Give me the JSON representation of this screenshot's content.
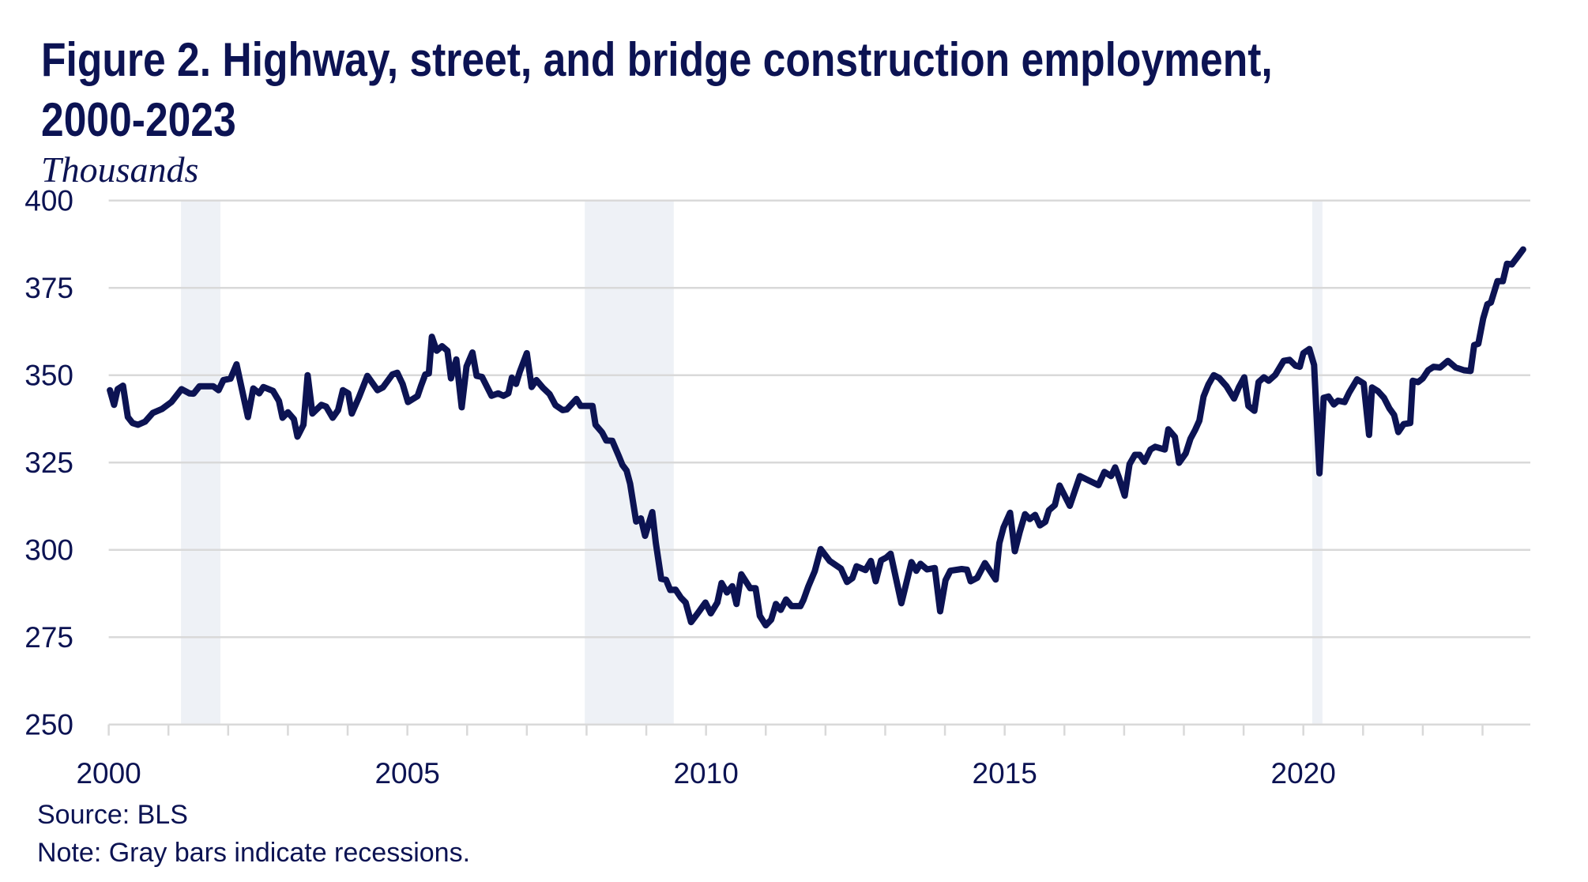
{
  "colors": {
    "line": "#0c1353",
    "grid": "#d9d9d9",
    "recession": "#eef1f6",
    "text": "#0c1353"
  },
  "chart_data": {
    "type": "line",
    "title": "Figure 2. Highway, street, and bridge construction employment, 2000-2023",
    "title_lines": [
      "Figure 2. Highway, street, and bridge construction employment,",
      "2000-2023"
    ],
    "ylabel": "Thousands",
    "xlabel": "",
    "xlim": [
      2000,
      2023.8
    ],
    "ylim": [
      250,
      400
    ],
    "yticks": [
      250,
      275,
      300,
      325,
      350,
      375,
      400
    ],
    "ytick_labels": [
      "250",
      "275",
      "300",
      "325",
      "350",
      "375",
      "400"
    ],
    "xticks_minor": [
      2000,
      2001,
      2002,
      2003,
      2004,
      2005,
      2006,
      2007,
      2008,
      2009,
      2010,
      2011,
      2012,
      2013,
      2014,
      2015,
      2016,
      2017,
      2018,
      2019,
      2020,
      2021,
      2022,
      2023
    ],
    "xticks": [
      2000,
      2005,
      2010,
      2015,
      2020
    ],
    "xtick_labels": [
      "2000",
      "2005",
      "2010",
      "2015",
      "2020"
    ],
    "grid": "horizontal",
    "recessions": [
      [
        2001.21,
        2001.87
      ],
      [
        2007.97,
        2009.46
      ],
      [
        2020.15,
        2020.32
      ]
    ],
    "source": "Source: BLS",
    "note": "Note: Gray bars indicate recessions.",
    "series": [
      {
        "name": "Highway, street, and bridge construction employment",
        "points": [
          [
            2000.02,
            345.7
          ],
          [
            2000.09,
            341.5
          ],
          [
            2000.15,
            346
          ],
          [
            2000.24,
            347
          ],
          [
            2000.32,
            338
          ],
          [
            2000.4,
            336.3
          ],
          [
            2000.49,
            335.8
          ],
          [
            2000.61,
            336.7
          ],
          [
            2000.74,
            339.2
          ],
          [
            2000.89,
            340.3
          ],
          [
            2001.05,
            342.3
          ],
          [
            2001.22,
            346
          ],
          [
            2001.35,
            344.8
          ],
          [
            2001.42,
            344.7
          ],
          [
            2001.52,
            346.8
          ],
          [
            2001.75,
            346.8
          ],
          [
            2001.84,
            345.7
          ],
          [
            2001.92,
            348.6
          ],
          [
            2002.04,
            349
          ],
          [
            2002.14,
            353.1
          ],
          [
            2002.33,
            338
          ],
          [
            2002.42,
            346.2
          ],
          [
            2002.52,
            344.8
          ],
          [
            2002.59,
            346.6
          ],
          [
            2002.75,
            345.5
          ],
          [
            2002.85,
            342.6
          ],
          [
            2002.91,
            337.8
          ],
          [
            2003.0,
            339.4
          ],
          [
            2003.1,
            337.4
          ],
          [
            2003.16,
            332.4
          ],
          [
            2003.26,
            335.8
          ],
          [
            2003.33,
            350
          ],
          [
            2003.41,
            339
          ],
          [
            2003.56,
            341.5
          ],
          [
            2003.64,
            341
          ],
          [
            2003.75,
            337.8
          ],
          [
            2003.84,
            340
          ],
          [
            2003.92,
            345.7
          ],
          [
            2004.01,
            344.8
          ],
          [
            2004.07,
            339
          ],
          [
            2004.19,
            343.7
          ],
          [
            2004.33,
            349.8
          ],
          [
            2004.5,
            345.7
          ],
          [
            2004.59,
            346.5
          ],
          [
            2004.75,
            350.2
          ],
          [
            2004.83,
            350.7
          ],
          [
            2004.92,
            347.5
          ],
          [
            2005.01,
            342.3
          ],
          [
            2005.17,
            344
          ],
          [
            2005.23,
            347
          ],
          [
            2005.3,
            350.2
          ],
          [
            2005.36,
            350.5
          ],
          [
            2005.41,
            361
          ],
          [
            2005.49,
            357
          ],
          [
            2005.58,
            358.3
          ],
          [
            2005.67,
            357
          ],
          [
            2005.73,
            349.1
          ],
          [
            2005.82,
            354.5
          ],
          [
            2005.91,
            340.8
          ],
          [
            2005.99,
            352.5
          ],
          [
            2006.09,
            356.5
          ],
          [
            2006.16,
            349.8
          ],
          [
            2006.25,
            349.5
          ],
          [
            2006.41,
            344.1
          ],
          [
            2006.52,
            344.8
          ],
          [
            2006.61,
            344.1
          ],
          [
            2006.69,
            344.8
          ],
          [
            2006.75,
            349.3
          ],
          [
            2006.82,
            347.5
          ],
          [
            2006.88,
            350.9
          ],
          [
            2007.0,
            356.3
          ],
          [
            2007.08,
            346.6
          ],
          [
            2007.16,
            348.6
          ],
          [
            2007.27,
            346.4
          ],
          [
            2007.38,
            344.6
          ],
          [
            2007.48,
            341.4
          ],
          [
            2007.6,
            340
          ],
          [
            2007.67,
            340.2
          ],
          [
            2007.83,
            343.2
          ],
          [
            2007.9,
            341.2
          ],
          [
            2008.1,
            341.2
          ],
          [
            2008.15,
            335.8
          ],
          [
            2008.26,
            333.6
          ],
          [
            2008.33,
            331.3
          ],
          [
            2008.43,
            331.2
          ],
          [
            2008.54,
            326.8
          ],
          [
            2008.6,
            324.3
          ],
          [
            2008.67,
            322.7
          ],
          [
            2008.73,
            318.9
          ],
          [
            2008.83,
            308.1
          ],
          [
            2008.91,
            309
          ],
          [
            2008.98,
            304
          ],
          [
            2009.1,
            310.8
          ],
          [
            2009.16,
            302
          ],
          [
            2009.25,
            291.7
          ],
          [
            2009.33,
            291.4
          ],
          [
            2009.4,
            288.5
          ],
          [
            2009.49,
            288.6
          ],
          [
            2009.58,
            286.3
          ],
          [
            2009.66,
            284.9
          ],
          [
            2009.75,
            279.3
          ],
          [
            2009.86,
            281.8
          ],
          [
            2009.99,
            284.9
          ],
          [
            2010.08,
            281.8
          ],
          [
            2010.19,
            284.9
          ],
          [
            2010.26,
            290.5
          ],
          [
            2010.35,
            287.8
          ],
          [
            2010.44,
            289.6
          ],
          [
            2010.51,
            284.5
          ],
          [
            2010.59,
            293
          ],
          [
            2010.74,
            289
          ],
          [
            2010.83,
            289
          ],
          [
            2010.9,
            281.1
          ],
          [
            2011.0,
            278.4
          ],
          [
            2011.09,
            280
          ],
          [
            2011.17,
            284.5
          ],
          [
            2011.25,
            282.8
          ],
          [
            2011.34,
            285.8
          ],
          [
            2011.43,
            283.9
          ],
          [
            2011.58,
            283.9
          ],
          [
            2011.63,
            285.6
          ],
          [
            2011.71,
            289.4
          ],
          [
            2011.82,
            293.9
          ],
          [
            2011.92,
            300.2
          ],
          [
            2012.07,
            296.8
          ],
          [
            2012.26,
            294.6
          ],
          [
            2012.36,
            290.8
          ],
          [
            2012.45,
            291.9
          ],
          [
            2012.52,
            295.3
          ],
          [
            2012.67,
            294.2
          ],
          [
            2012.76,
            296.8
          ],
          [
            2012.84,
            291
          ],
          [
            2012.93,
            297
          ],
          [
            2013.02,
            297.8
          ],
          [
            2013.09,
            298.9
          ],
          [
            2013.27,
            284.7
          ],
          [
            2013.44,
            296.5
          ],
          [
            2013.52,
            294
          ],
          [
            2013.59,
            296
          ],
          [
            2013.7,
            294.4
          ],
          [
            2013.83,
            294.8
          ],
          [
            2013.92,
            282.4
          ],
          [
            2014.01,
            291.3
          ],
          [
            2014.09,
            294
          ],
          [
            2014.28,
            294.5
          ],
          [
            2014.37,
            294.3
          ],
          [
            2014.43,
            291
          ],
          [
            2014.54,
            292
          ],
          [
            2014.67,
            296.2
          ],
          [
            2014.85,
            291.5
          ],
          [
            2014.91,
            301.9
          ],
          [
            2014.98,
            306.4
          ],
          [
            2015.09,
            310.6
          ],
          [
            2015.17,
            299.6
          ],
          [
            2015.25,
            305
          ],
          [
            2015.34,
            310.2
          ],
          [
            2015.42,
            308.8
          ],
          [
            2015.51,
            310
          ],
          [
            2015.59,
            307
          ],
          [
            2015.68,
            308
          ],
          [
            2015.74,
            311.3
          ],
          [
            2015.84,
            312.8
          ],
          [
            2015.92,
            318.4
          ],
          [
            2016.09,
            312.6
          ],
          [
            2016.26,
            321.1
          ],
          [
            2016.39,
            320
          ],
          [
            2016.57,
            318.5
          ],
          [
            2016.67,
            322.3
          ],
          [
            2016.78,
            321.1
          ],
          [
            2016.85,
            323.6
          ],
          [
            2016.91,
            320.8
          ],
          [
            2017.01,
            315.5
          ],
          [
            2017.09,
            324.5
          ],
          [
            2017.18,
            327.2
          ],
          [
            2017.26,
            327.2
          ],
          [
            2017.34,
            325.2
          ],
          [
            2017.44,
            328.7
          ],
          [
            2017.52,
            329.5
          ],
          [
            2017.68,
            328.7
          ],
          [
            2017.74,
            334.5
          ],
          [
            2017.85,
            332.3
          ],
          [
            2017.92,
            324.9
          ],
          [
            2018.03,
            327.6
          ],
          [
            2018.11,
            331.8
          ],
          [
            2018.19,
            334.4
          ],
          [
            2018.26,
            337
          ],
          [
            2018.33,
            343.9
          ],
          [
            2018.41,
            347.3
          ],
          [
            2018.5,
            350
          ],
          [
            2018.59,
            349.2
          ],
          [
            2018.71,
            346.9
          ],
          [
            2018.84,
            343.3
          ],
          [
            2018.92,
            346.5
          ],
          [
            2019.01,
            349.4
          ],
          [
            2019.08,
            341.2
          ],
          [
            2019.18,
            339.8
          ],
          [
            2019.25,
            348
          ],
          [
            2019.34,
            349.4
          ],
          [
            2019.42,
            348.4
          ],
          [
            2019.53,
            350.1
          ],
          [
            2019.67,
            354.1
          ],
          [
            2019.77,
            354.4
          ],
          [
            2019.87,
            352.7
          ],
          [
            2019.94,
            352.4
          ],
          [
            2020.0,
            356.3
          ],
          [
            2020.1,
            357.5
          ],
          [
            2020.18,
            352.9
          ],
          [
            2020.27,
            321.9
          ],
          [
            2020.34,
            343.5
          ],
          [
            2020.42,
            343.9
          ],
          [
            2020.51,
            341.6
          ],
          [
            2020.58,
            342.7
          ],
          [
            2020.69,
            342.3
          ],
          [
            2020.77,
            345.1
          ],
          [
            2020.9,
            348.8
          ],
          [
            2021.01,
            347.6
          ],
          [
            2021.1,
            332.9
          ],
          [
            2021.15,
            346.5
          ],
          [
            2021.25,
            345.4
          ],
          [
            2021.35,
            343.5
          ],
          [
            2021.44,
            340.5
          ],
          [
            2021.52,
            338.6
          ],
          [
            2021.59,
            333.7
          ],
          [
            2021.68,
            336
          ],
          [
            2021.79,
            336.3
          ],
          [
            2021.83,
            348.4
          ],
          [
            2021.92,
            348
          ],
          [
            2022.0,
            349.1
          ],
          [
            2022.09,
            351.4
          ],
          [
            2022.18,
            352.4
          ],
          [
            2022.29,
            352.2
          ],
          [
            2022.42,
            354.1
          ],
          [
            2022.55,
            352.2
          ],
          [
            2022.69,
            351.4
          ],
          [
            2022.8,
            351.2
          ],
          [
            2022.86,
            358.6
          ],
          [
            2022.93,
            359
          ],
          [
            2023.01,
            366.2
          ],
          [
            2023.08,
            370.3
          ],
          [
            2023.14,
            370.8
          ],
          [
            2023.25,
            376.9
          ],
          [
            2023.34,
            376.9
          ],
          [
            2023.41,
            381.9
          ],
          [
            2023.49,
            381.7
          ],
          [
            2023.58,
            383.7
          ],
          [
            2023.68,
            386
          ]
        ]
      }
    ]
  }
}
